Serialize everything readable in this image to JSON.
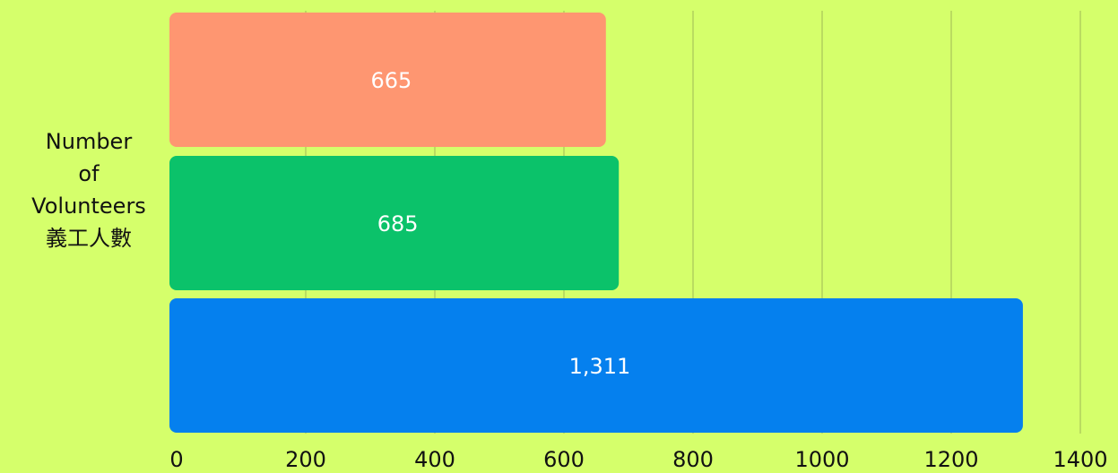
{
  "chart_data": {
    "type": "bar",
    "orientation": "horizontal",
    "ylabel_lines": [
      "Number",
      "of",
      "Volunteers",
      "義工人數"
    ],
    "xlabel": "",
    "xlim": [
      0,
      1400
    ],
    "x_ticks": [
      "0",
      "200",
      "400",
      "600",
      "800",
      "1000",
      "1200",
      "1400"
    ],
    "grid": true,
    "bars": [
      {
        "value": 665,
        "label": "665",
        "color": "#fe9671"
      },
      {
        "value": 685,
        "label": "685",
        "color": "#0bc26a"
      },
      {
        "value": 1311,
        "label": "1,311",
        "color": "#0580ee"
      }
    ],
    "colors": {
      "background": "#d5ff6b",
      "grid": "#a8c45a",
      "bar_label": "#ffffff",
      "axis_text": "#111111"
    }
  }
}
